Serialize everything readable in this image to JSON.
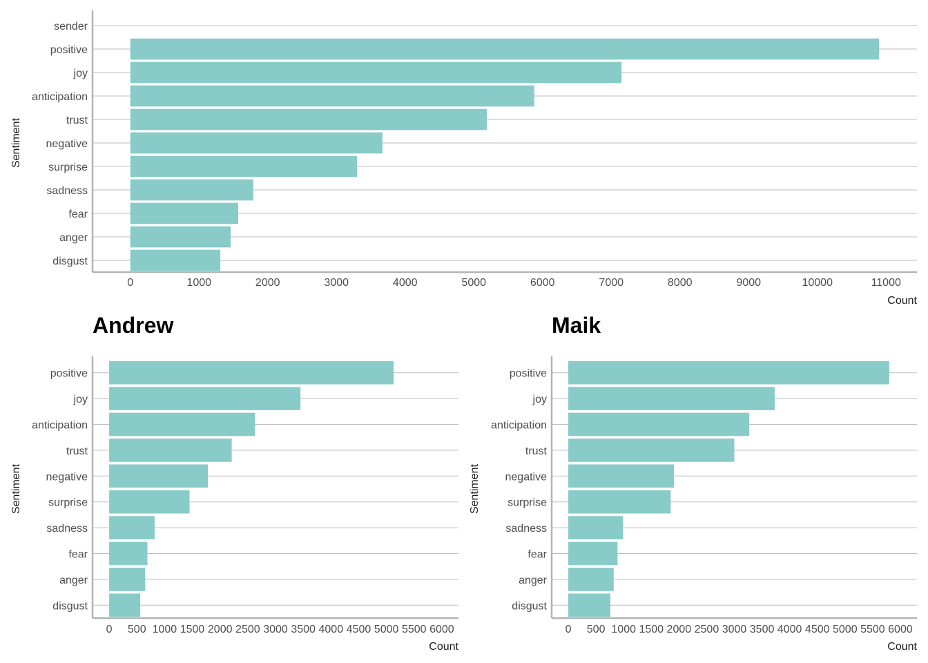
{
  "style": {
    "bar_color": "#88cbc8",
    "grid_color": "#bdbdbd",
    "axis_color": "#b3b3b3"
  },
  "chart_data": [
    {
      "type": "bar",
      "orientation": "horizontal",
      "title": "",
      "xlabel": "Count",
      "ylabel": "Sentiment",
      "categories": [
        "sender",
        "positive",
        "joy",
        "anticipation",
        "trust",
        "negative",
        "surprise",
        "sadness",
        "fear",
        "anger",
        "disgust"
      ],
      "values": [
        null,
        10900,
        7150,
        5880,
        5190,
        3670,
        3300,
        1790,
        1570,
        1460,
        1310
      ],
      "xlim": [
        -550,
        11450
      ],
      "xticks": [
        0,
        1000,
        2000,
        3000,
        4000,
        5000,
        6000,
        7000,
        8000,
        9000,
        10000,
        11000
      ],
      "grid": "horizontal"
    },
    {
      "type": "bar",
      "orientation": "horizontal",
      "title": "Andrew",
      "xlabel": "Count",
      "ylabel": "Sentiment",
      "categories": [
        "positive",
        "joy",
        "anticipation",
        "trust",
        "negative",
        "surprise",
        "sadness",
        "fear",
        "anger",
        "disgust"
      ],
      "values": [
        5130,
        3450,
        2630,
        2210,
        1780,
        1450,
        820,
        690,
        650,
        560
      ],
      "xlim": [
        -300,
        6300
      ],
      "xticks": [
        0,
        500,
        1000,
        1500,
        2000,
        2500,
        3000,
        3500,
        4000,
        4500,
        5000,
        5500,
        6000
      ],
      "grid": "horizontal"
    },
    {
      "type": "bar",
      "orientation": "horizontal",
      "title": "Maik",
      "xlabel": "Count",
      "ylabel": "Sentiment",
      "categories": [
        "positive",
        "joy",
        "anticipation",
        "trust",
        "negative",
        "surprise",
        "sadness",
        "fear",
        "anger",
        "disgust"
      ],
      "values": [
        5800,
        3730,
        3270,
        3000,
        1910,
        1850,
        990,
        890,
        820,
        760
      ],
      "xlim": [
        -300,
        6300
      ],
      "xticks": [
        0,
        500,
        1000,
        1500,
        2000,
        2500,
        3000,
        3500,
        4000,
        4500,
        5000,
        5500,
        6000
      ],
      "grid": "horizontal"
    }
  ]
}
